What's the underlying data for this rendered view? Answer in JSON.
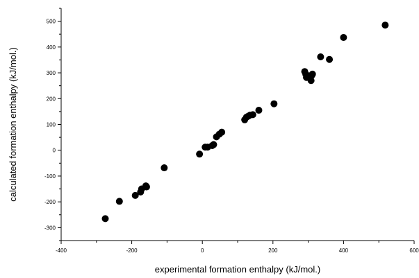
{
  "chart_data": {
    "type": "scatter",
    "title": "",
    "xlabel": "experimental formation enthalpy (kJ/mol.)",
    "ylabel": "calculated formation enthalpy (kJ/mol.)",
    "xlim": [
      -400,
      600
    ],
    "ylim": [
      -350,
      550
    ],
    "x_ticks": [
      "-400",
      "-200",
      "0",
      "200",
      "400",
      "600"
    ],
    "y_ticks": [
      "-300",
      "-200",
      "-100",
      "0",
      "100",
      "200",
      "300",
      "400",
      "500"
    ],
    "grid": false,
    "legend": "none",
    "marker_color": "#000000",
    "series": [
      {
        "points": [
          [
            -275,
            -265
          ],
          [
            -235,
            -198
          ],
          [
            -190,
            -175
          ],
          [
            -175,
            -162
          ],
          [
            -172,
            -150
          ],
          [
            -158,
            -142
          ],
          [
            -160,
            -138
          ],
          [
            -108,
            -68
          ],
          [
            -8,
            -15
          ],
          [
            8,
            12
          ],
          [
            15,
            12
          ],
          [
            28,
            18
          ],
          [
            32,
            22
          ],
          [
            40,
            52
          ],
          [
            48,
            62
          ],
          [
            55,
            70
          ],
          [
            120,
            118
          ],
          [
            125,
            128
          ],
          [
            130,
            132
          ],
          [
            135,
            136
          ],
          [
            143,
            138
          ],
          [
            160,
            155
          ],
          [
            203,
            180
          ],
          [
            290,
            305
          ],
          [
            293,
            295
          ],
          [
            295,
            282
          ],
          [
            303,
            288
          ],
          [
            310,
            290
          ],
          [
            308,
            270
          ],
          [
            312,
            295
          ],
          [
            335,
            362
          ],
          [
            360,
            352
          ],
          [
            400,
            437
          ],
          [
            518,
            485
          ]
        ]
      }
    ]
  }
}
